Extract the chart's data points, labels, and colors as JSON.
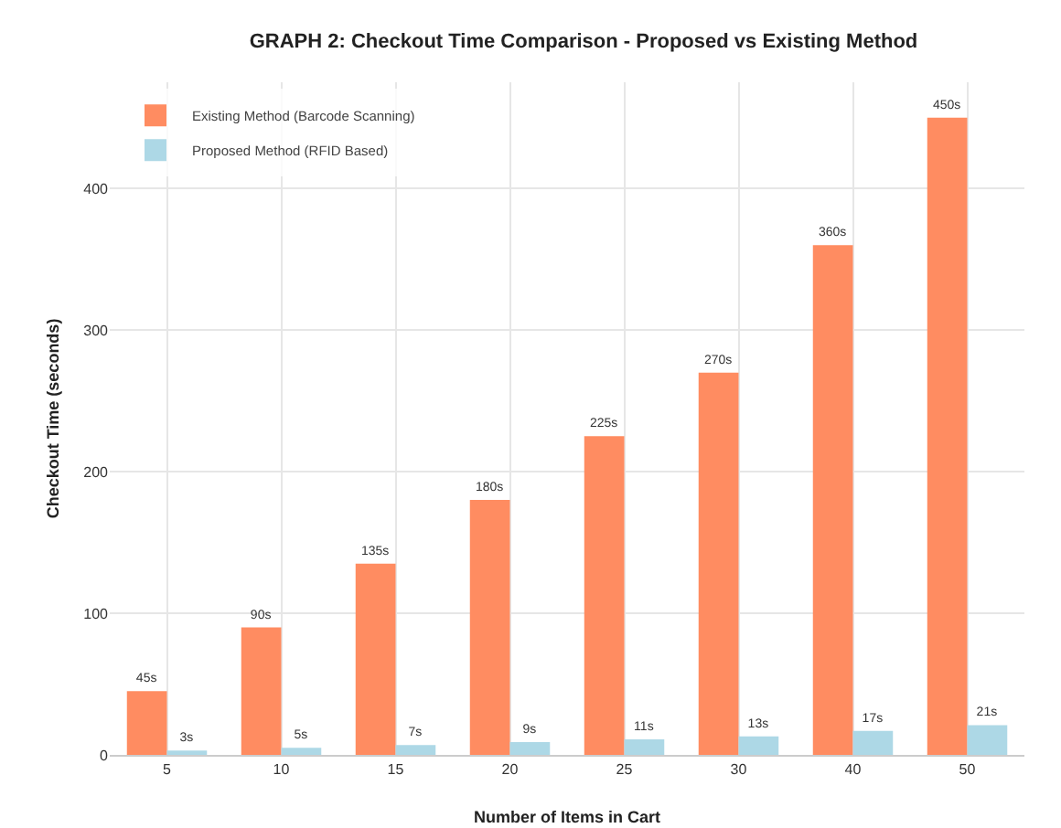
{
  "chart_data": {
    "type": "bar",
    "title": "GRAPH 2: Checkout Time Comparison - Proposed vs Existing Method",
    "xlabel": "Number of Items in Cart",
    "ylabel": "Checkout Time (seconds)",
    "categories": [
      "5",
      "10",
      "15",
      "20",
      "25",
      "30",
      "40",
      "50"
    ],
    "series": [
      {
        "name": "Existing Method (Barcode Scanning)",
        "color": "#ff8c61",
        "values": [
          45,
          90,
          135,
          180,
          225,
          270,
          360,
          450
        ],
        "value_labels": [
          "45s",
          "90s",
          "135s",
          "180s",
          "225s",
          "270s",
          "360s",
          "450s"
        ]
      },
      {
        "name": "Proposed Method (RFID Based)",
        "color": "#add8e6",
        "values": [
          3,
          5,
          7,
          9,
          11,
          13,
          17,
          21
        ],
        "value_labels": [
          "3s",
          "5s",
          "7s",
          "9s",
          "11s",
          "13s",
          "17s",
          "21s"
        ]
      }
    ],
    "ylim": [
      0,
      475
    ],
    "yticks": [
      0,
      100,
      200,
      300,
      400
    ],
    "grid": true,
    "legend": "top left"
  }
}
